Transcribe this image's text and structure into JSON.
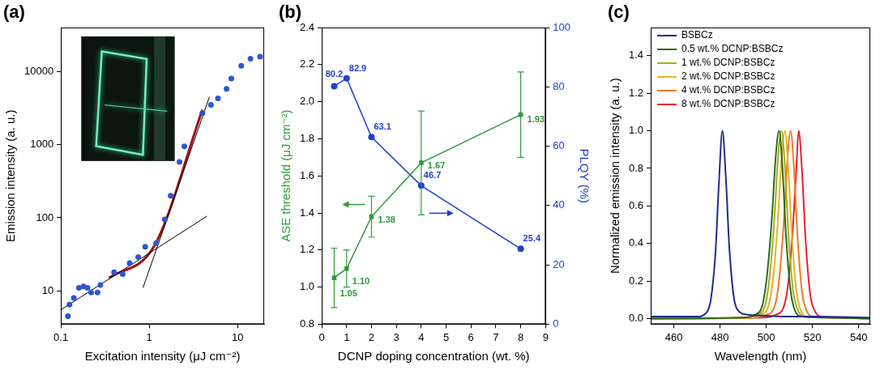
{
  "chart_data": [
    {
      "type": "scatter",
      "panel": "(a)",
      "x_label": "Excitation intensity (μJ cm⁻²)",
      "y_label": "Emission intensity (a. u.)",
      "log": true,
      "grid": false,
      "xlim": [
        0.1,
        20
      ],
      "xticks": [
        0.1,
        1,
        10
      ],
      "ylim": [
        3.5,
        40000
      ],
      "yticks": [
        10,
        100,
        1000,
        10000
      ],
      "series": [
        {
          "type": "scatter",
          "color": "#2f55d4",
          "marker": "circle",
          "x": [
            0.12,
            0.125,
            0.14,
            0.16,
            0.18,
            0.2,
            0.22,
            0.26,
            0.28,
            0.4,
            0.5,
            0.6,
            0.75,
            0.9,
            1.2,
            1.5,
            1.75,
            2.2,
            2.5,
            4,
            5,
            6,
            7.5,
            8.5,
            11,
            14,
            18
          ],
          "values": [
            4.5,
            6.5,
            8,
            11,
            11.5,
            11,
            9.5,
            9.5,
            12,
            18,
            17,
            24,
            29,
            40,
            45,
            95,
            200,
            580,
            950,
            2700,
            3500,
            4300,
            5800,
            8000,
            12000,
            15000,
            16000
          ]
        },
        {
          "type": "line",
          "color": "#000000",
          "line_style": "solid",
          "x": [
            0.1,
            4.5
          ],
          "values": [
            5.5,
            105
          ]
        },
        {
          "type": "line",
          "color": "#000000",
          "line_style": "solid",
          "x": [
            0.85,
            4.8
          ],
          "values": [
            11,
            4500
          ]
        },
        {
          "type": "line",
          "color": "#a01010",
          "line_style": "solid",
          "x": [
            0.35,
            1.15,
            4
          ],
          "values": [
            15,
            42,
            3000
          ]
        }
      ]
    },
    {
      "type": "line",
      "panel": "(b)",
      "x_label": "DCNP doping concentration (wt. %)",
      "y_label": "ASE threshold (μJ cm⁻²)",
      "y2_label": "PLQY (%)",
      "grid": false,
      "data_labels": true,
      "xlim": [
        0,
        9
      ],
      "xticks": [
        0,
        1,
        2,
        3,
        4,
        5,
        6,
        7,
        8,
        9
      ],
      "ylim": [
        0.8,
        2.4
      ],
      "yticks": [
        0.8,
        {
          "value": 1,
          "label": "1.0"
        },
        1.2,
        1.4,
        1.6,
        1.8,
        {
          "value": 2,
          "label": "2.0"
        },
        2.2,
        2.4
      ],
      "y2lim": [
        0,
        100
      ],
      "y2ticks": [
        0,
        20,
        40,
        60,
        80,
        100
      ],
      "series": [
        {
          "color": "#2e9b3a",
          "marker": "square",
          "x": [
            0.5,
            1,
            2,
            4,
            8
          ],
          "values": [
            1.05,
            1.1,
            1.38,
            1.67,
            1.93
          ],
          "value_labels": [
            "1.05",
            "1.10",
            "1.38",
            "1.67",
            "1.93"
          ],
          "errors": [
            0.16,
            0.1,
            0.11,
            0.28,
            0.23
          ]
        },
        {
          "color": "#2040d0",
          "marker": "circle",
          "axis": "y2",
          "x": [
            0.5,
            1,
            2,
            4,
            8
          ],
          "values": [
            80.2,
            82.9,
            63.1,
            46.7,
            25.4
          ]
        }
      ]
    },
    {
      "type": "line",
      "panel": "(c)",
      "x_label": "Wavelength (nm)",
      "y_label": "Normalized emission intensity (a. u.)",
      "grid": false,
      "legend": "upper left",
      "xlim": [
        450,
        545
      ],
      "xticks": [
        460,
        480,
        500,
        520,
        540
      ],
      "ylim": [
        -0.03,
        1.55
      ],
      "yticks": [
        {
          "value": 0,
          "label": "0.0"
        },
        0.2,
        0.4,
        0.6,
        0.8,
        {
          "value": 1,
          "label": "1.0"
        },
        1.2,
        1.4
      ],
      "series": [
        {
          "name": "BSBCz",
          "color": "#1f2a8c",
          "x": [
            450,
            460,
            470,
            474,
            476,
            478,
            479.5,
            481,
            482.5,
            484,
            486,
            488,
            492,
            500,
            510,
            520,
            545
          ],
          "values": [
            0.01,
            0.01,
            0.01,
            0.03,
            0.1,
            0.35,
            0.72,
            1.0,
            0.75,
            0.38,
            0.11,
            0.04,
            0.02,
            0.015,
            0.01,
            0.01,
            0.005
          ]
        },
        {
          "name": "0.5 wt.% DCNP:BSBCz",
          "color": "#2d6a1f",
          "x": [
            450,
            490,
            495,
            498.5,
            500.5,
            502.5,
            504,
            505.5,
            507,
            508.5,
            510.5,
            512.5,
            515.5,
            525,
            545
          ],
          "values": [
            0,
            0.005,
            0.02,
            0.08,
            0.25,
            0.55,
            0.85,
            1.0,
            0.8,
            0.45,
            0.15,
            0.04,
            0.01,
            0.005,
            0
          ]
        },
        {
          "name": "1 wt.% DCNP:BSBCz",
          "color": "#a3ad1c",
          "x": [
            450,
            491,
            496,
            499.5,
            501.5,
            503.5,
            505,
            506.5,
            508,
            509.5,
            511.5,
            513.5,
            516.5,
            526,
            545
          ],
          "values": [
            0,
            0.005,
            0.02,
            0.07,
            0.23,
            0.53,
            0.84,
            1.0,
            0.82,
            0.47,
            0.16,
            0.05,
            0.01,
            0.005,
            0
          ]
        },
        {
          "name": "2 wt.% DCNP:BSBCz",
          "color": "#e6b422",
          "x": [
            450,
            492,
            497.5,
            501,
            503,
            505,
            506.5,
            508,
            509.5,
            511,
            513,
            515,
            518,
            528,
            545
          ],
          "values": [
            0,
            0.005,
            0.02,
            0.07,
            0.22,
            0.52,
            0.83,
            1.0,
            0.8,
            0.46,
            0.15,
            0.04,
            0.01,
            0.005,
            0
          ]
        },
        {
          "name": "4 wt.% DCNP:BSBCz",
          "color": "#f07a2a",
          "x": [
            450,
            495,
            500,
            503.5,
            505.5,
            507.5,
            509,
            510.5,
            512,
            513.5,
            515.5,
            517.5,
            520.5,
            530,
            545
          ],
          "values": [
            0,
            0.005,
            0.02,
            0.06,
            0.2,
            0.5,
            0.82,
            1.0,
            0.8,
            0.44,
            0.14,
            0.04,
            0.01,
            0.005,
            0
          ]
        },
        {
          "name": "8 wt.% DCNP:BSBCz",
          "color": "#e8202e",
          "x": [
            450,
            499,
            504,
            507.5,
            509.5,
            511.5,
            513,
            514,
            515.5,
            517,
            519,
            521,
            524,
            533,
            545
          ],
          "values": [
            0,
            0.005,
            0.02,
            0.06,
            0.19,
            0.48,
            0.8,
            1.0,
            0.78,
            0.42,
            0.13,
            0.04,
            0.01,
            0.005,
            0
          ]
        }
      ]
    }
  ]
}
